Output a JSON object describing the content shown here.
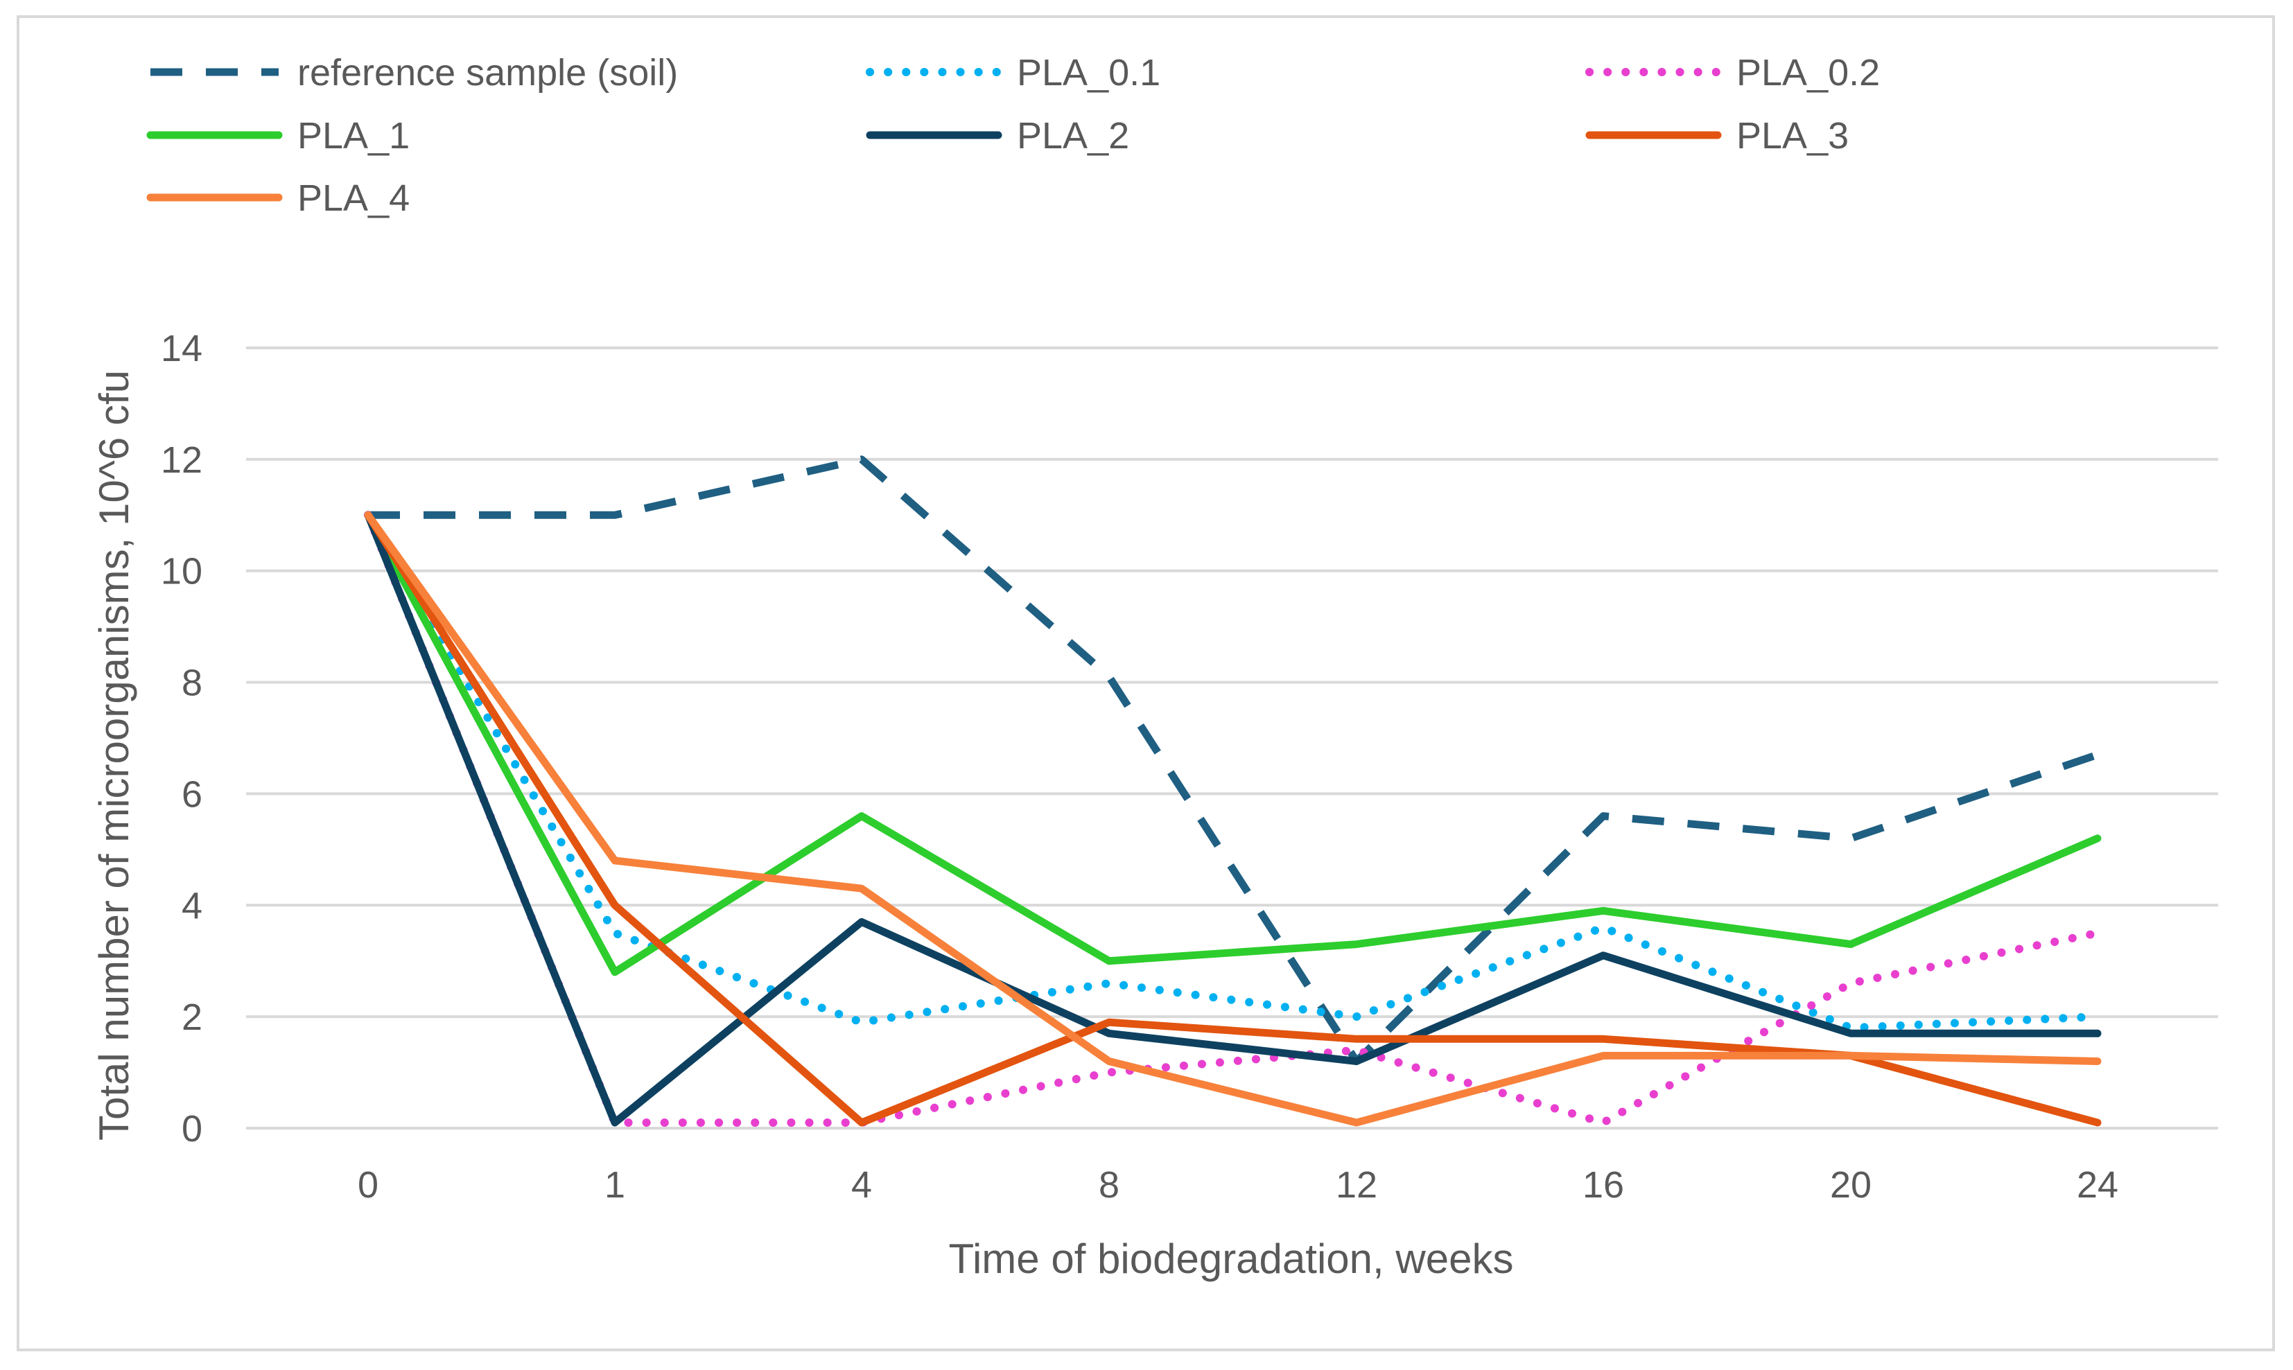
{
  "chart_data": {
    "type": "line",
    "title": "",
    "xlabel": "Time of biodegradation, weeks",
    "ylabel": "Total number of microorganisms, 10^6 cfu",
    "categories": [
      "0",
      "1",
      "4",
      "8",
      "12",
      "16",
      "20",
      "24"
    ],
    "ylim": [
      0,
      14
    ],
    "yticks": [
      0,
      2,
      4,
      6,
      8,
      10,
      12,
      14
    ],
    "grid": true,
    "legend_position": "top",
    "series": [
      {
        "name": "reference sample (soil)",
        "color": "#1f5f82",
        "style": "dashed",
        "values": [
          11,
          11,
          12,
          8.1,
          1.2,
          5.6,
          5.2,
          6.7
        ]
      },
      {
        "name": "PLA_0.1",
        "color": "#00b0f0",
        "style": "dotted",
        "values": [
          11,
          3.5,
          1.9,
          2.6,
          2.0,
          3.6,
          1.8,
          2.0
        ]
      },
      {
        "name": "PLA_0.2",
        "color": "#e83fcf",
        "style": "dotted",
        "values": [
          11,
          0.1,
          0.1,
          1.0,
          1.4,
          0.1,
          2.6,
          3.5
        ]
      },
      {
        "name": "PLA_1",
        "color": "#2dcd2d",
        "style": "solid",
        "values": [
          11,
          2.8,
          5.6,
          3.0,
          3.3,
          3.9,
          3.3,
          5.2
        ]
      },
      {
        "name": "PLA_2",
        "color": "#0e4160",
        "style": "solid",
        "values": [
          11,
          0.1,
          3.7,
          1.7,
          1.2,
          3.1,
          1.7,
          1.7
        ]
      },
      {
        "name": "PLA_3",
        "color": "#e2540f",
        "style": "solid",
        "values": [
          11,
          4.0,
          0.1,
          1.9,
          1.6,
          1.6,
          1.3,
          0.1
        ]
      },
      {
        "name": "PLA_4",
        "color": "#f7813b",
        "style": "solid",
        "values": [
          11,
          4.8,
          4.3,
          1.2,
          0.1,
          1.3,
          1.3,
          1.2
        ]
      }
    ]
  }
}
